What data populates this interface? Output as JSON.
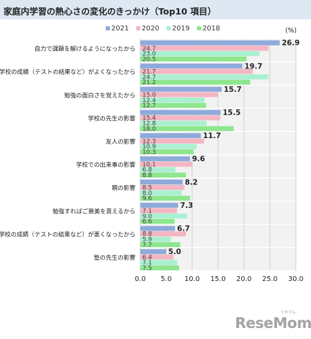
{
  "title": "家庭内学習の熱心さの変化のきっかけ（Top10 項目）",
  "logo_text": "ReseMom",
  "logo_ruby": "リセマム",
  "chart_data": {
    "type": "bar",
    "orientation": "horizontal",
    "unit_label": "(%)",
    "categories": [
      "自力で課題を解けるようになったから",
      "学校の成績（テストの結果など）がよくなったから",
      "勉強の面白さを覚えたから",
      "学校の先生の影響",
      "友人の影響",
      "学校での出来事の影響",
      "親の影響",
      "勉強すればご褒美を貰えるから",
      "学校の成績（テストの結果など）が悪くなったから",
      "塾の先生の影響"
    ],
    "series": [
      {
        "name": "2021",
        "color": "#8eaadb",
        "values": [
          26.9,
          19.7,
          15.7,
          15.5,
          11.7,
          9.6,
          8.2,
          7.3,
          6.7,
          5.0
        ]
      },
      {
        "name": "2020",
        "color": "#f4b6c2",
        "values": [
          24.7,
          21.7,
          15.0,
          15.4,
          12.3,
          10.1,
          8.5,
          7.1,
          8.8,
          6.4
        ]
      },
      {
        "name": "2019",
        "color": "#a9f0d1",
        "values": [
          23.0,
          24.7,
          12.4,
          12.8,
          10.9,
          6.8,
          8.0,
          9.0,
          5.9,
          7.1
        ]
      },
      {
        "name": "2018",
        "color": "#8ee68e",
        "values": [
          20.5,
          21.2,
          12.7,
          18.0,
          10.3,
          8.8,
          9.6,
          6.6,
          7.7,
          7.5
        ]
      }
    ],
    "xlim": [
      0,
      30
    ],
    "xticks": [
      "0.0",
      "5.0",
      "10.0",
      "15.0",
      "20.0",
      "25.0",
      "30.0"
    ],
    "grid": true,
    "legend_position": "top"
  }
}
